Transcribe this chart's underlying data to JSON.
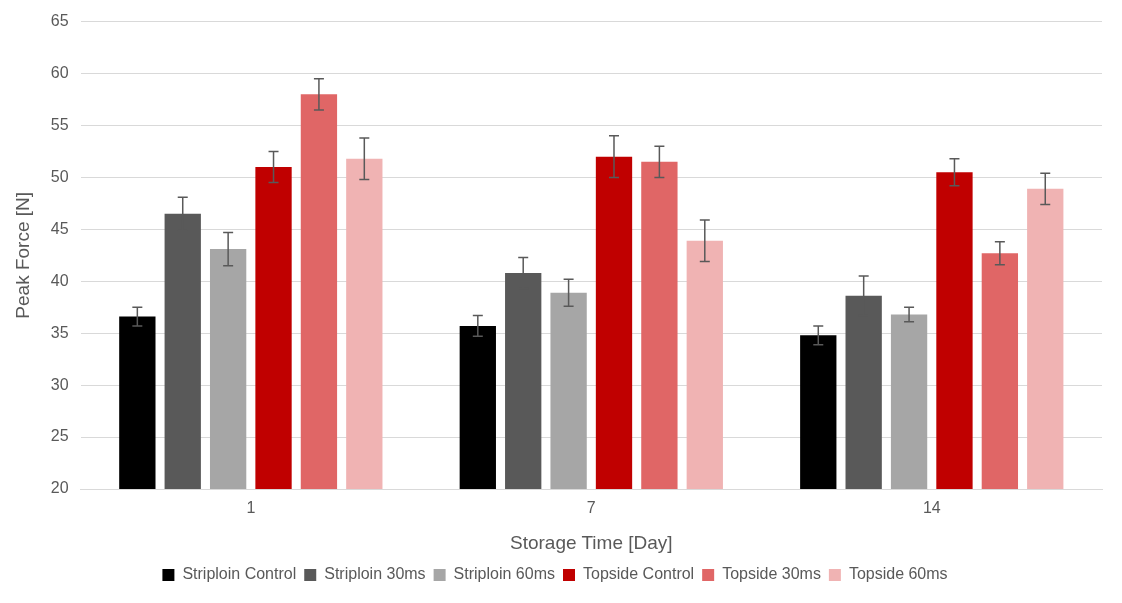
{
  "chart_data": {
    "type": "bar",
    "xlabel": "Storage Time [Day]",
    "ylabel": "Peak Force [N]",
    "categories": [
      "1",
      "7",
      "14"
    ],
    "series": [
      {
        "name": "Striploin Control",
        "color": "#000000",
        "values": [
          36.6,
          35.7,
          34.8
        ],
        "errors": [
          0.9,
          1.0,
          0.9
        ]
      },
      {
        "name": "Striploin 30ms",
        "color": "#595959",
        "values": [
          46.5,
          40.8,
          38.6
        ],
        "errors": [
          1.6,
          1.5,
          1.9
        ]
      },
      {
        "name": "Striploin 60ms",
        "color": "#a6a6a6",
        "values": [
          43.1,
          38.9,
          36.8
        ],
        "errors": [
          1.6,
          1.3,
          0.7
        ]
      },
      {
        "name": "Topside Control",
        "color": "#c00000",
        "values": [
          51.0,
          52.0,
          50.5
        ],
        "errors": [
          1.5,
          2.0,
          1.3
        ]
      },
      {
        "name": "Topside 30ms",
        "color": "#e06666",
        "values": [
          58.0,
          51.5,
          42.7
        ],
        "errors": [
          1.5,
          1.5,
          1.1
        ]
      },
      {
        "name": "Topside 60ms",
        "color": "#f0b3b3",
        "values": [
          51.8,
          43.9,
          48.9
        ],
        "errors": [
          2.0,
          2.0,
          1.5
        ]
      }
    ],
    "ylim": [
      20,
      65
    ],
    "yticks": [
      20,
      25,
      30,
      35,
      40,
      45,
      50,
      55,
      60,
      65
    ],
    "grid": "y",
    "legend": "bottom"
  }
}
